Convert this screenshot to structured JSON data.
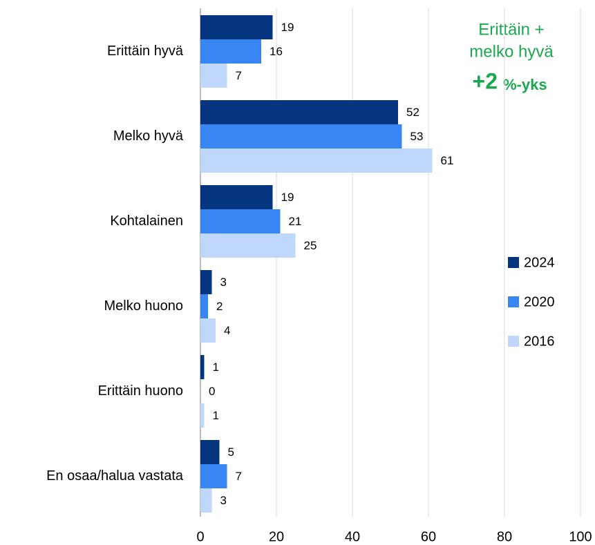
{
  "chart_data": {
    "type": "barh",
    "categories": [
      "Erittäin hyvä",
      "Melko hyvä",
      "Kohtalainen",
      "Melko huono",
      "Erittäin huono",
      "En osaa/halua vastata"
    ],
    "series": [
      {
        "name": "2024",
        "color": "#063580",
        "values": [
          19,
          52,
          19,
          3,
          1,
          5
        ]
      },
      {
        "name": "2020",
        "color": "#3786f4",
        "values": [
          16,
          53,
          21,
          2,
          0,
          7
        ]
      },
      {
        "name": "2016",
        "color": "#bed7fb",
        "values": [
          7,
          61,
          25,
          4,
          1,
          3
        ]
      }
    ],
    "xlim": [
      0,
      100
    ],
    "xticks": [
      0,
      20,
      40,
      60,
      80,
      100
    ],
    "grid": true,
    "annotation": {
      "lines": [
        "Erittäin +",
        "melko hyvä"
      ],
      "value": "+2",
      "unit": "%-yks"
    }
  }
}
